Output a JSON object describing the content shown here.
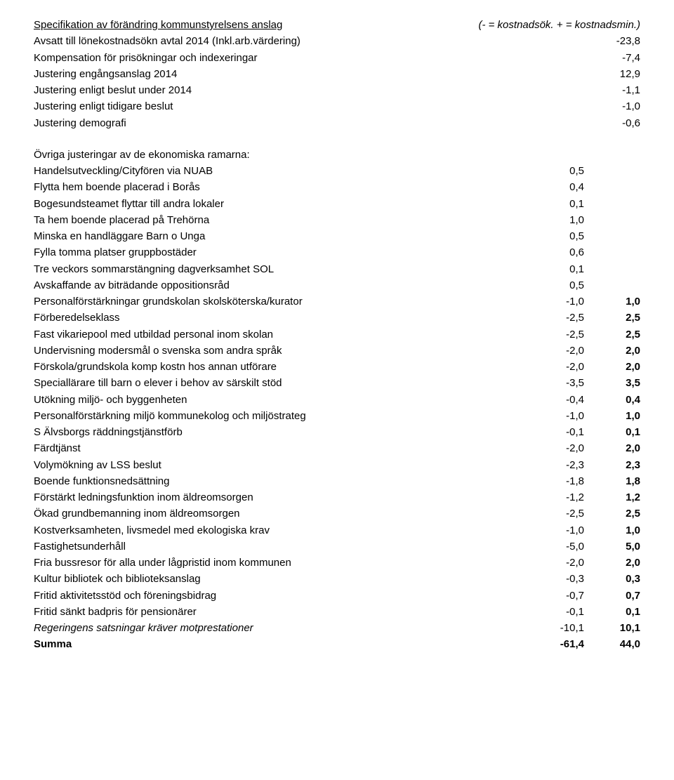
{
  "header": {
    "title": "Specifikation av förändring kommunstyrelsens anslag",
    "note": "(- = kostnadsök. + = kostnadsmin.)"
  },
  "block1": [
    {
      "label": "Avsatt till lönekostnadsökn avtal 2014 (Inkl.arb.värdering)",
      "v1": "-23,8"
    },
    {
      "label": "Kompensation för prisökningar och indexeringar",
      "v1": "-7,4"
    },
    {
      "label": "Justering engångsanslag 2014",
      "v1": "12,9"
    },
    {
      "label": "Justering enligt beslut under 2014",
      "v1": "-1,1"
    },
    {
      "label": "Justering enligt tidigare beslut",
      "v1": "-1,0"
    },
    {
      "label": "Justering demografi",
      "v1": "-0,6"
    }
  ],
  "block2_title": "Övriga justeringar av de ekonomiska ramarna:",
  "block2": [
    {
      "label": "Handelsutveckling/Cityfören via NUAB",
      "v1": "0,5"
    },
    {
      "label": "Flytta hem boende placerad i Borås",
      "v1": "0,4"
    },
    {
      "label": "Bogesundsteamet flyttar till andra lokaler",
      "v1": "0,1"
    },
    {
      "label": "Ta hem boende placerad på Trehörna",
      "v1": "1,0"
    },
    {
      "label": "Minska en handläggare Barn o Unga",
      "v1": "0,5"
    },
    {
      "label": "Fylla tomma platser gruppbostäder",
      "v1": "0,6"
    },
    {
      "label": "Tre veckors sommarstängning dagverksamhet SOL",
      "v1": "0,1"
    },
    {
      "label": "Avskaffande av biträdande oppositionsråd",
      "v1": "0,5"
    },
    {
      "label": "Personalförstärkningar grundskolan skolsköterska/kurator",
      "v1": "-1,0",
      "v2": "1,0",
      "v2_bold": true
    },
    {
      "label": "Förberedelseklass",
      "v1": "-2,5",
      "v2": "2,5",
      "v2_bold": true
    },
    {
      "label": "Fast vikariepool med utbildad personal inom skolan",
      "v1": "-2,5",
      "v2": "2,5",
      "v2_bold": true
    },
    {
      "label": "Undervisning modersmål o svenska som andra språk",
      "v1": "-2,0",
      "v2": "2,0",
      "v2_bold": true
    },
    {
      "label": "Förskola/grundskola komp kostn hos annan utförare",
      "v1": "-2,0",
      "v2": "2,0",
      "v2_bold": true
    },
    {
      "label": "Speciallärare till barn o elever i behov av särskilt stöd",
      "v1": "-3,5",
      "v2": "3,5",
      "v2_bold": true
    },
    {
      "label": "Utökning miljö- och byggenheten",
      "v1": "-0,4",
      "v2": "0,4",
      "v2_bold": true
    },
    {
      "label": "Personalförstärkning miljö kommunekolog och miljöstrateg",
      "v1": "-1,0",
      "v2": "1,0",
      "v2_bold": true
    },
    {
      "label": "S Älvsborgs räddningstjänstförb",
      "v1": "-0,1",
      "v2": "0,1",
      "v2_bold": true
    },
    {
      "label": "Färdtjänst",
      "v1": "-2,0",
      "v2": "2,0",
      "v2_bold": true
    },
    {
      "label": "Volymökning av LSS beslut",
      "v1": "-2,3",
      "v2": "2,3",
      "v2_bold": true
    },
    {
      "label": "Boende funktionsnedsättning",
      "v1": "-1,8",
      "v2": "1,8",
      "v2_bold": true
    },
    {
      "label": "Förstärkt ledningsfunktion inom äldreomsorgen",
      "v1": "-1,2",
      "v2": "1,2",
      "v2_bold": true
    },
    {
      "label": "Ökad grundbemanning inom äldreomsorgen",
      "v1": "-2,5",
      "v2": "2,5",
      "v2_bold": true
    },
    {
      "label": "Kostverksamheten, livsmedel med ekologiska krav",
      "v1": "-1,0",
      "v2": "1,0",
      "v2_bold": true
    },
    {
      "label": "Fastighetsunderhåll",
      "v1": "-5,0",
      "v2": "5,0",
      "v2_bold": true
    },
    {
      "label": "Fria bussresor för alla under lågpristid inom kommunen",
      "v1": "-2,0",
      "v2": "2,0",
      "v2_bold": true
    },
    {
      "label": "Kultur bibliotek och biblioteksanslag",
      "v1": "-0,3",
      "v2": "0,3",
      "v2_bold": true
    },
    {
      "label": "Fritid aktivitetsstöd och föreningsbidrag",
      "v1": "-0,7",
      "v2": "0,7",
      "v2_bold": true
    },
    {
      "label": "Fritid sänkt badpris för pensionärer",
      "v1": "-0,1",
      "v2": "0,1",
      "v2_bold": true
    },
    {
      "label": "Regeringens satsningar kräver motprestationer",
      "v1": "-10,1",
      "v2": "10,1",
      "v2_bold": true,
      "label_italic": true
    }
  ],
  "summa": {
    "label": "Summa",
    "v1": "-61,4",
    "v2": "44,0"
  }
}
